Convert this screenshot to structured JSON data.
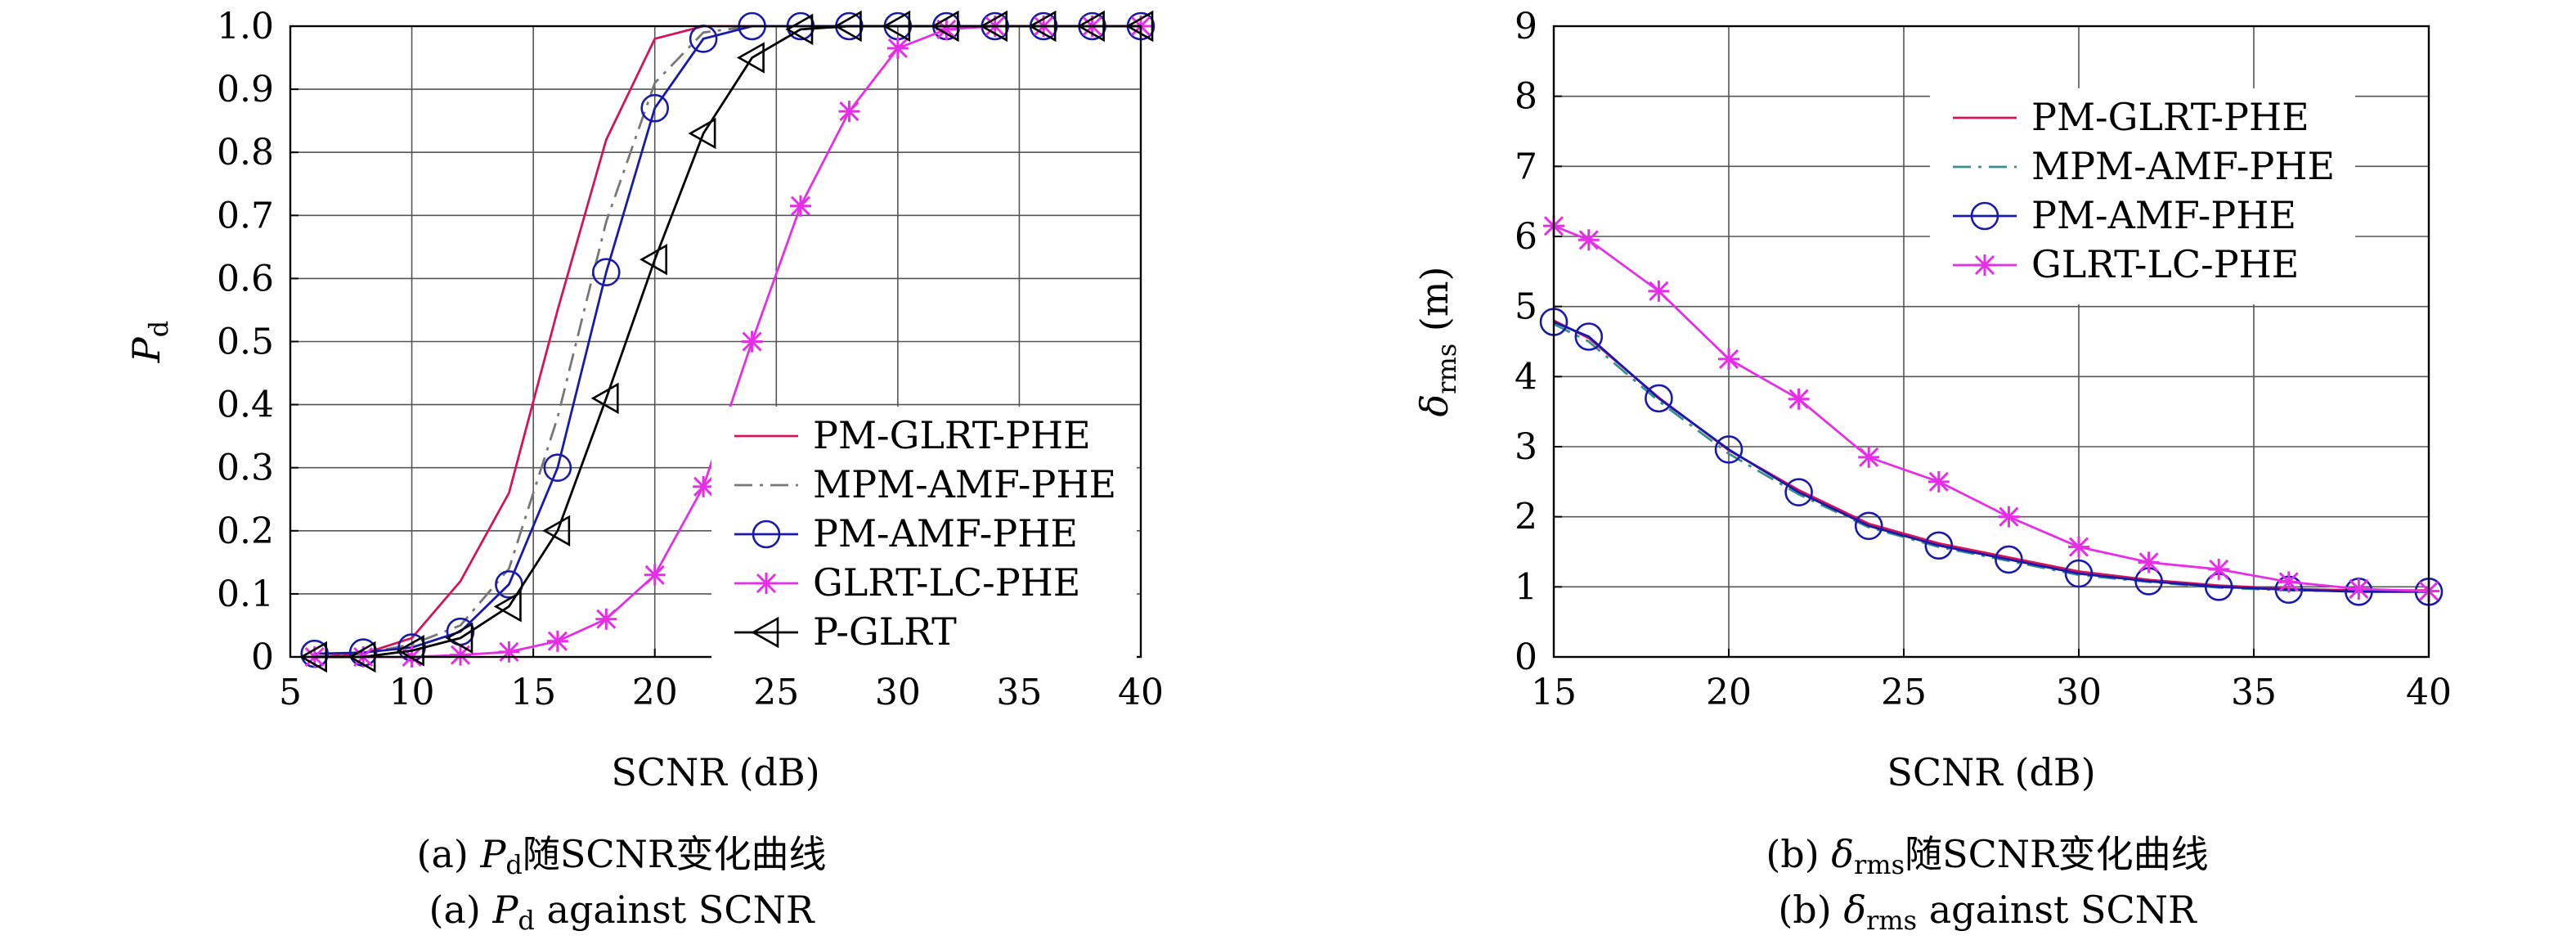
{
  "chart_data": [
    {
      "type": "line",
      "xlabel": "SCNR (dB)",
      "ylabel_main": "P",
      "ylabel_sub": "d",
      "xlim": [
        5,
        40
      ],
      "ylim": [
        0,
        1.0
      ],
      "xticks": [
        "5",
        "10",
        "15",
        "20",
        "25",
        "30",
        "35",
        "40"
      ],
      "yticks": [
        "0",
        "0.1",
        "0.2",
        "0.3",
        "0.4",
        "0.5",
        "0.6",
        "0.7",
        "0.8",
        "0.9",
        "1.0"
      ],
      "grid": true,
      "legend_position": "lower-right",
      "caption_cn": {
        "pre": "(a) ",
        "main": "P",
        "sub": "d",
        "post": "随SCNR变化曲线"
      },
      "caption_en": {
        "pre": "(a) ",
        "main": "P",
        "sub": "d",
        "post": " against SCNR"
      },
      "series": [
        {
          "name": "PM-GLRT-PHE",
          "color": "#d4145a",
          "dash": "solid",
          "marker": "none",
          "x": [
            6,
            8,
            10,
            12,
            14,
            16,
            18,
            20,
            22,
            24,
            26,
            28,
            30,
            32,
            34,
            36,
            38,
            40
          ],
          "y": [
            0.0,
            0.005,
            0.03,
            0.12,
            0.26,
            0.55,
            0.82,
            0.98,
            1.0,
            1.0,
            1.0,
            1.0,
            1.0,
            1.0,
            1.0,
            1.0,
            1.0,
            1.0
          ]
        },
        {
          "name": "MPM-AMF-PHE",
          "color": "#777777",
          "dash": "dashdot",
          "marker": "none",
          "x": [
            6,
            8,
            10,
            12,
            14,
            16,
            18,
            20,
            22,
            24,
            26,
            28,
            30,
            32,
            34,
            36,
            38,
            40
          ],
          "y": [
            0.0,
            0.005,
            0.02,
            0.05,
            0.14,
            0.38,
            0.69,
            0.91,
            0.99,
            1.0,
            1.0,
            1.0,
            1.0,
            1.0,
            1.0,
            1.0,
            1.0,
            1.0
          ]
        },
        {
          "name": "PM-AMF-PHE",
          "color": "#1a1aaa",
          "dash": "solid",
          "marker": "circle",
          "x": [
            6,
            8,
            10,
            12,
            14,
            16,
            18,
            20,
            22,
            24,
            26,
            28,
            30,
            32,
            34,
            36,
            38,
            40
          ],
          "y": [
            0.005,
            0.007,
            0.015,
            0.04,
            0.115,
            0.3,
            0.61,
            0.87,
            0.98,
            1.0,
            1.0,
            1.0,
            1.0,
            1.0,
            1.0,
            1.0,
            1.0,
            1.0
          ]
        },
        {
          "name": "GLRT-LC-PHE",
          "color": "#e62ee6",
          "dash": "solid",
          "marker": "star",
          "x": [
            6,
            8,
            10,
            12,
            14,
            16,
            18,
            20,
            22,
            24,
            26,
            28,
            30,
            32,
            34,
            36,
            38,
            40
          ],
          "y": [
            0.0,
            0.0,
            0.0,
            0.003,
            0.008,
            0.025,
            0.06,
            0.13,
            0.27,
            0.5,
            0.715,
            0.865,
            0.965,
            0.995,
            1.0,
            1.0,
            1.0,
            1.0
          ]
        },
        {
          "name": "P-GLRT",
          "color": "#000000",
          "dash": "solid",
          "marker": "triangle-left",
          "x": [
            6,
            8,
            10,
            12,
            14,
            16,
            18,
            20,
            22,
            24,
            26,
            28,
            30,
            32,
            34,
            36,
            38,
            40
          ],
          "y": [
            0.0,
            0.0,
            0.01,
            0.03,
            0.08,
            0.2,
            0.41,
            0.63,
            0.83,
            0.95,
            0.995,
            1.0,
            1.0,
            1.0,
            1.0,
            1.0,
            1.0,
            1.0
          ]
        }
      ]
    },
    {
      "type": "line",
      "xlabel": "SCNR (dB)",
      "ylabel_main": "δ",
      "ylabel_sub": "rms",
      "ylabel_unit": " (m)",
      "xlim": [
        15,
        40
      ],
      "ylim": [
        0,
        9
      ],
      "xticks": [
        "15",
        "20",
        "25",
        "30",
        "35",
        "40"
      ],
      "yticks": [
        "0",
        "1",
        "2",
        "3",
        "4",
        "5",
        "6",
        "7",
        "8",
        "9"
      ],
      "grid": true,
      "legend_position": "top-right",
      "caption_cn": {
        "pre": "(b) ",
        "main": "δ",
        "sub": "rms",
        "post": "随SCNR变化曲线"
      },
      "caption_en": {
        "pre": "(b) ",
        "main": "δ",
        "sub": "rms",
        "post": " against SCNR"
      },
      "series": [
        {
          "name": "PM-GLRT-PHE",
          "color": "#d4145a",
          "dash": "solid",
          "marker": "none",
          "x": [
            15,
            16,
            18,
            20,
            22,
            24,
            26,
            28,
            30,
            32,
            34,
            36,
            38,
            40
          ],
          "y": [
            4.8,
            4.55,
            3.7,
            2.95,
            2.38,
            1.9,
            1.62,
            1.42,
            1.22,
            1.1,
            1.02,
            0.97,
            0.95,
            0.95
          ]
        },
        {
          "name": "MPM-AMF-PHE",
          "color": "#3a8f8f",
          "dash": "dashdot",
          "marker": "none",
          "x": [
            15,
            16,
            18,
            20,
            22,
            24,
            26,
            28,
            30,
            32,
            34,
            36,
            38,
            40
          ],
          "y": [
            4.75,
            4.5,
            3.65,
            2.9,
            2.32,
            1.85,
            1.57,
            1.37,
            1.17,
            1.07,
            0.99,
            0.95,
            0.94,
            0.94
          ]
        },
        {
          "name": "PM-AMF-PHE",
          "color": "#1a1aaa",
          "dash": "solid",
          "marker": "circle",
          "x": [
            15,
            16,
            18,
            20,
            22,
            24,
            26,
            28,
            30,
            32,
            34,
            36,
            38,
            40
          ],
          "y": [
            4.78,
            4.57,
            3.69,
            2.96,
            2.35,
            1.87,
            1.59,
            1.39,
            1.19,
            1.08,
            1.0,
            0.96,
            0.93,
            0.93
          ]
        },
        {
          "name": "GLRT-LC-PHE",
          "color": "#e62ee6",
          "dash": "solid",
          "marker": "star",
          "x": [
            15,
            16,
            18,
            20,
            22,
            24,
            26,
            28,
            30,
            32,
            34,
            36,
            38,
            40
          ],
          "y": [
            6.15,
            5.95,
            5.22,
            4.25,
            3.68,
            2.85,
            2.5,
            2.0,
            1.57,
            1.35,
            1.25,
            1.07,
            0.97,
            0.94
          ]
        }
      ]
    }
  ]
}
